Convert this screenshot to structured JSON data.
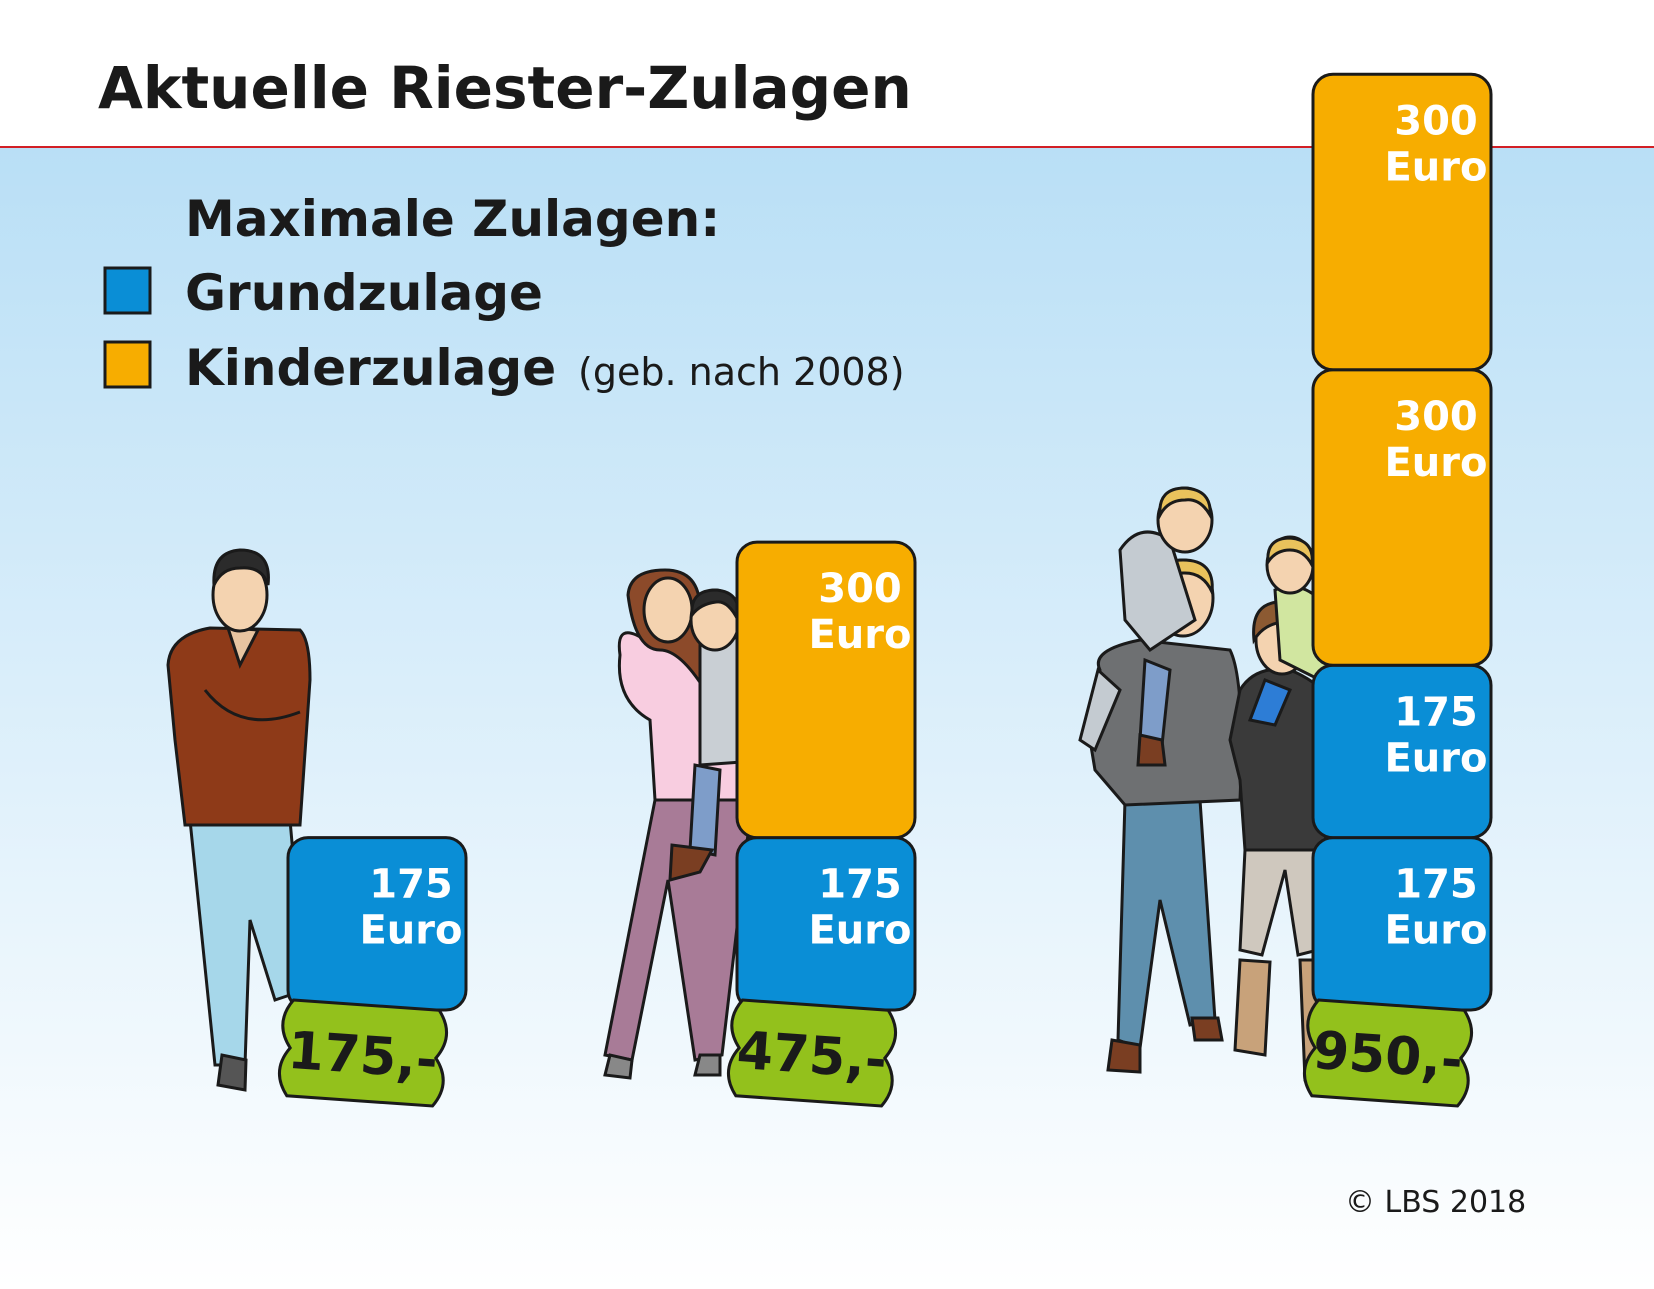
{
  "chart_data": {
    "type": "bar",
    "title": "Aktuelle Riester-Zulagen",
    "legend": {
      "title": "Maximale Zulagen:",
      "entries": [
        {
          "label": "Grundzulage",
          "note": "",
          "color": "#0a8ed6"
        },
        {
          "label": "Kinderzulage",
          "note": "(geb. nach 2008)",
          "color": "#f7ad00"
        }
      ]
    },
    "unit": "Euro",
    "categories": [
      "Single",
      "Mutter mit Kind",
      "Familie mit zwei Kindern"
    ],
    "stacks": [
      {
        "segments": [
          {
            "series": "Grundzulage",
            "value": 175
          }
        ],
        "total_label": "175,-"
      },
      {
        "segments": [
          {
            "series": "Grundzulage",
            "value": 175
          },
          {
            "series": "Kinderzulage",
            "value": 300
          }
        ],
        "total_label": "475,-"
      },
      {
        "segments": [
          {
            "series": "Grundzulage",
            "value": 175
          },
          {
            "series": "Grundzulage",
            "value": 175
          },
          {
            "series": "Kinderzulage",
            "value": 300
          },
          {
            "series": "Kinderzulage",
            "value": 300
          }
        ],
        "total_label": "950,-"
      }
    ],
    "totals": [
      175,
      475,
      950
    ],
    "copyright": "© LBS 2018",
    "colors": {
      "grund": "#0a8ed6",
      "kind": "#f7ad00",
      "tag": "#93c11c",
      "rule": "#d21f26",
      "sky_top": "#b8def5"
    }
  }
}
